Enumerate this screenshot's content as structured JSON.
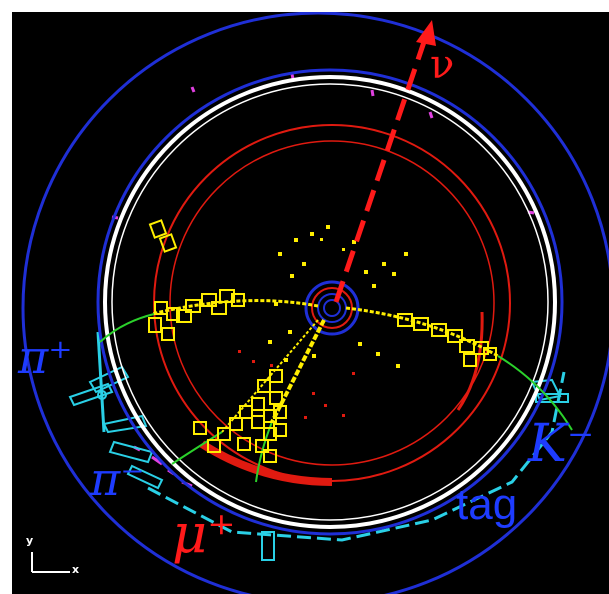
{
  "labels": {
    "nu": "ν",
    "pi_plus": "π⁺",
    "pi_minus": "π⁻",
    "mu_plus": "μ⁺",
    "k_minus": "K⁻",
    "tag": "tag"
  },
  "axis_indicator": {
    "y": "y",
    "x": "x"
  },
  "colors": {
    "background": "#000000",
    "outer_ring": "#1f2fd6",
    "solenoid": "#ffffff",
    "drift_chamber": "#e01a10",
    "muon_track": "#ffee00",
    "pion_track": "#ffee00",
    "kaon_track": "#2bd12b",
    "neutrino": "#ff1a1a",
    "muon_label": "#ff1a1a",
    "pion_label": "#1e3cff",
    "kaon_label": "#1e3cff",
    "cyan_hits": "#2ad0e6",
    "magenta_hits": "#e040e0"
  }
}
